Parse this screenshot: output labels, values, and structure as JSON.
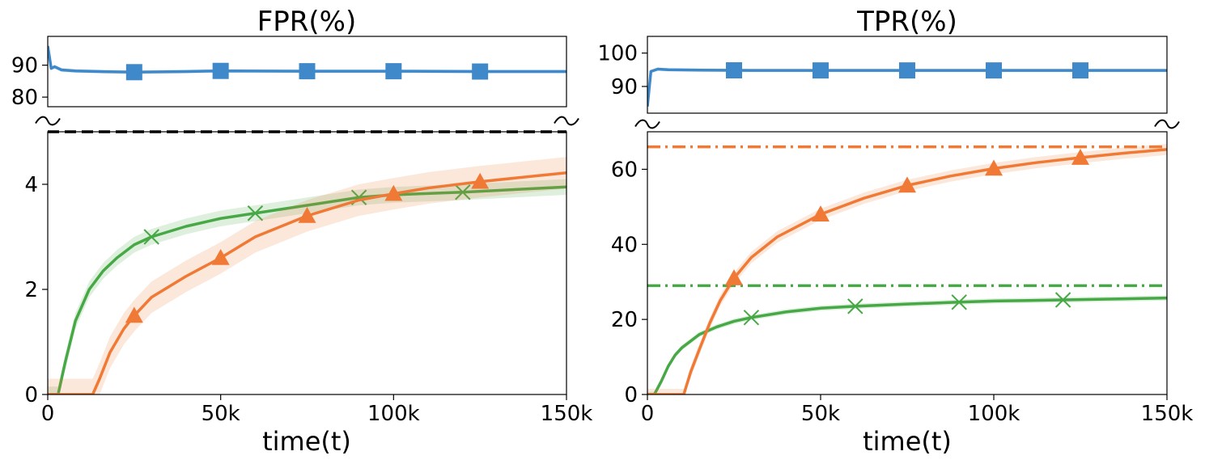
{
  "colors": {
    "blue": "#3f88c9",
    "orange": "#f07a35",
    "green": "#47a846",
    "black": "#000000"
  },
  "chart_data": [
    {
      "type": "line",
      "title": "FPR(%)",
      "xlabel": "time(t)",
      "ylabel": "",
      "grid": false,
      "broken_y_axis": true,
      "xlim": [
        0,
        150000
      ],
      "x_ticks": [
        0,
        50000,
        100000,
        150000
      ],
      "x_tick_labels": [
        "0",
        "50k",
        "100k",
        "150k"
      ],
      "upper_ylim": [
        77,
        99
      ],
      "upper_y_ticks": [
        80,
        90
      ],
      "upper_y_tick_labels": [
        "80",
        "90"
      ],
      "lower_ylim": [
        0,
        5
      ],
      "lower_y_ticks": [
        0,
        2,
        4
      ],
      "lower_y_tick_labels": [
        "0",
        "2",
        "4"
      ],
      "series": [
        {
          "color_key": "blue",
          "marker": "square",
          "panel": "upper",
          "x": [
            0,
            1000,
            2000,
            4000,
            8000,
            15000,
            25000,
            40000,
            50000,
            75000,
            100000,
            125000,
            150000
          ],
          "y": [
            96,
            89,
            89.5,
            88.5,
            88.2,
            88.0,
            87.8,
            88.0,
            88.2,
            88.1,
            88.1,
            88.0,
            88.0
          ],
          "band": 0.6,
          "marker_x": [
            25000,
            50000,
            75000,
            100000,
            125000
          ]
        },
        {
          "color_key": "green",
          "marker": "x",
          "panel": "lower",
          "x": [
            0,
            3000,
            5000,
            8000,
            12000,
            16000,
            20000,
            25000,
            30000,
            40000,
            50000,
            60000,
            75000,
            90000,
            100000,
            120000,
            150000
          ],
          "y": [
            0,
            0,
            0.6,
            1.4,
            2.0,
            2.35,
            2.6,
            2.85,
            3.0,
            3.2,
            3.35,
            3.45,
            3.6,
            3.75,
            3.8,
            3.85,
            3.95
          ],
          "band": 0.15,
          "marker_x": [
            30000,
            60000,
            90000,
            120000
          ]
        },
        {
          "color_key": "orange",
          "marker": "triangle",
          "panel": "lower",
          "x": [
            0,
            13000,
            15000,
            18000,
            22000,
            25000,
            30000,
            40000,
            50000,
            60000,
            75000,
            90000,
            100000,
            110000,
            125000,
            150000
          ],
          "y": [
            0,
            0,
            0.3,
            0.8,
            1.25,
            1.5,
            1.85,
            2.25,
            2.6,
            3.0,
            3.4,
            3.7,
            3.82,
            3.93,
            4.05,
            4.22
          ],
          "band": 0.3,
          "marker_x": [
            25000,
            50000,
            75000,
            100000,
            125000
          ]
        }
      ],
      "reference_lines": [
        {
          "y": 5.0,
          "color_key": "black",
          "style": "dashed"
        }
      ]
    },
    {
      "type": "line",
      "title": "TPR(%)",
      "xlabel": "time(t)",
      "ylabel": "",
      "grid": false,
      "broken_y_axis": true,
      "xlim": [
        0,
        150000
      ],
      "x_ticks": [
        0,
        50000,
        100000,
        150000
      ],
      "x_tick_labels": [
        "0",
        "50k",
        "100k",
        "150k"
      ],
      "upper_ylim": [
        82,
        105
      ],
      "upper_y_ticks": [
        90,
        100
      ],
      "upper_y_tick_labels": [
        "90",
        "100"
      ],
      "lower_ylim": [
        0,
        70
      ],
      "lower_y_ticks": [
        0,
        20,
        40,
        60
      ],
      "lower_y_tick_labels": [
        "0",
        "20",
        "40",
        "60"
      ],
      "series": [
        {
          "color_key": "blue",
          "marker": "square",
          "panel": "upper",
          "x": [
            0,
            1000,
            3000,
            6000,
            15000,
            30000,
            50000,
            75000,
            100000,
            125000,
            150000
          ],
          "y": [
            84,
            94.5,
            95.2,
            95.0,
            94.9,
            94.8,
            94.8,
            94.8,
            94.8,
            94.8,
            94.8
          ],
          "band": 0.5,
          "marker_x": [
            25000,
            50000,
            75000,
            100000,
            125000
          ]
        },
        {
          "color_key": "green",
          "marker": "x",
          "panel": "lower",
          "x": [
            0,
            2000,
            4000,
            6000,
            8000,
            10000,
            15000,
            20000,
            25000,
            30000,
            40000,
            50000,
            60000,
            75000,
            90000,
            100000,
            120000,
            150000
          ],
          "y": [
            0,
            0,
            3.5,
            7.5,
            10.5,
            12.5,
            16,
            18,
            19.5,
            20.5,
            22,
            23,
            23.5,
            24.1,
            24.6,
            24.9,
            25.2,
            25.7
          ],
          "band": 0.7,
          "marker_x": [
            30000,
            60000,
            90000,
            120000
          ]
        },
        {
          "color_key": "orange",
          "marker": "triangle",
          "panel": "lower",
          "x": [
            0,
            10500,
            12500,
            15000,
            18000,
            21000,
            25000,
            30000,
            37500,
            50000,
            62500,
            75000,
            87500,
            100000,
            112500,
            125000,
            137500,
            150000
          ],
          "y": [
            0,
            0,
            6,
            12,
            19,
            25,
            31,
            36.5,
            42,
            48,
            52.3,
            55.7,
            58.2,
            60.2,
            61.8,
            63.1,
            64.3,
            65.3
          ],
          "band": 1.5,
          "marker_x": [
            25000,
            50000,
            75000,
            100000,
            125000
          ]
        }
      ],
      "reference_lines": [
        {
          "y": 66.0,
          "color_key": "orange",
          "style": "dashdot"
        },
        {
          "y": 29.0,
          "color_key": "green",
          "style": "dashdot"
        }
      ]
    }
  ]
}
